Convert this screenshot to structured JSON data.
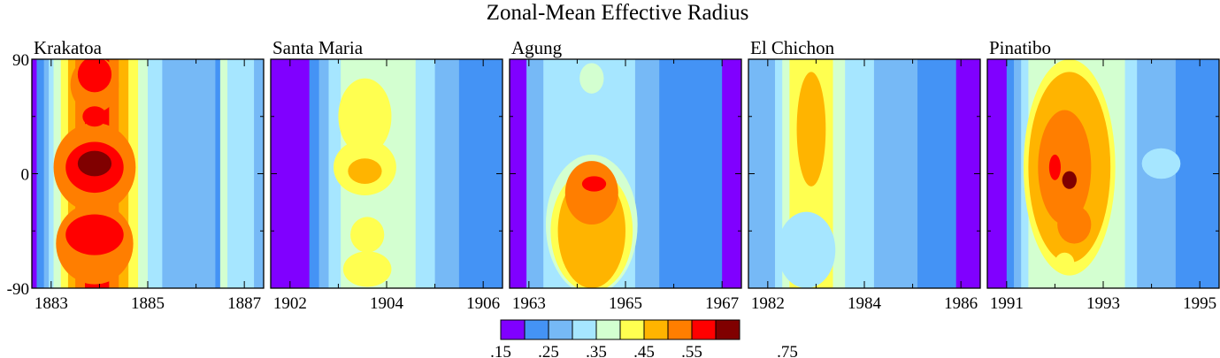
{
  "title": "Zonal-Mean Effective Radius",
  "chart_data": {
    "type": "heatmap",
    "title": "Zonal-Mean Effective Radius",
    "ylim": [
      -90,
      90
    ],
    "yticks": [
      "90",
      "0",
      "-90"
    ],
    "colorbar": {
      "levels": [
        0.15,
        0.2,
        0.25,
        0.3,
        0.35,
        0.4,
        0.45,
        0.5,
        0.55,
        0.6,
        0.65,
        0.7,
        0.75
      ],
      "labels": [
        ".15",
        ".25",
        ".35",
        ".45",
        ".55",
        ".75"
      ],
      "colors": [
        "#8000ff",
        "#4493f5",
        "#76b9f6",
        "#a6e6ff",
        "#d3ffd0",
        "#ffff50",
        "#ffb400",
        "#ff7e00",
        "#ff0000",
        "#800000"
      ]
    },
    "panels": [
      {
        "name": "Krakatoa",
        "xlim": [
          1882.6,
          1887.4
        ],
        "xticks": [
          "1883",
          "1885",
          "1887"
        ],
        "zones": [
          {
            "x": [
              1882.6,
              1882.7
            ],
            "c": 0
          },
          {
            "x": [
              1882.7,
              1882.85
            ],
            "c": 1
          },
          {
            "x": [
              1882.85,
              1882.95
            ],
            "c": 2
          },
          {
            "x": [
              1882.95,
              1883.05
            ],
            "c": 3
          },
          {
            "x": [
              1883.05,
              1883.2
            ],
            "c": 4
          },
          {
            "x": [
              1883.2,
              1883.35
            ],
            "c": 5
          },
          {
            "x": [
              1883.35,
              1883.5
            ],
            "c": 6
          },
          {
            "x": [
              1883.5,
              1883.7
            ],
            "c": 7
          },
          {
            "x": [
              1883.7,
              1884.2
            ],
            "c": 8
          },
          {
            "x": [
              1884.2,
              1884.4
            ],
            "c": 7
          },
          {
            "x": [
              1884.4,
              1884.6
            ],
            "c": 6
          },
          {
            "x": [
              1884.6,
              1884.8
            ],
            "c": 5
          },
          {
            "x": [
              1884.8,
              1885.0
            ],
            "c": 4
          },
          {
            "x": [
              1885.0,
              1885.3
            ],
            "c": 3
          },
          {
            "x": [
              1885.3,
              1886.4
            ],
            "c": 2
          },
          {
            "x": [
              1886.4,
              1886.5
            ],
            "c": 1
          },
          {
            "x": [
              1886.5,
              1886.65
            ],
            "c": 4
          },
          {
            "x": [
              1886.65,
              1887.2
            ],
            "c": 3
          },
          {
            "x": [
              1887.2,
              1887.4
            ],
            "c": 2
          }
        ],
        "blobs": [
          {
            "x": 1883.9,
            "y": 5,
            "rx": 0.85,
            "ry": 35,
            "c": 7
          },
          {
            "x": 1883.9,
            "y": 5,
            "rx": 0.6,
            "ry": 20,
            "c": 8
          },
          {
            "x": 1883.9,
            "y": 8,
            "rx": 0.35,
            "ry": 10,
            "c": 9
          },
          {
            "x": 1883.9,
            "y": -55,
            "rx": 0.8,
            "ry": 32,
            "c": 7
          },
          {
            "x": 1883.9,
            "y": -48,
            "rx": 0.6,
            "ry": 16,
            "c": 8
          },
          {
            "x": 1883.9,
            "y": 70,
            "rx": 0.5,
            "ry": 22,
            "c": 7
          },
          {
            "x": 1883.9,
            "y": 78,
            "rx": 0.35,
            "ry": 14,
            "c": 8
          },
          {
            "x": 1883.9,
            "y": 45,
            "rx": 0.25,
            "ry": 8,
            "c": 8
          }
        ]
      },
      {
        "name": "Santa Maria",
        "xlim": [
          1901.6,
          1906.4
        ],
        "xticks": [
          "1902",
          "1904",
          "1906"
        ],
        "zones": [
          {
            "x": [
              1901.6,
              1902.4
            ],
            "c": 0
          },
          {
            "x": [
              1902.4,
              1902.6
            ],
            "c": 1
          },
          {
            "x": [
              1902.6,
              1902.8
            ],
            "c": 2
          },
          {
            "x": [
              1902.8,
              1903.05
            ],
            "c": 3
          },
          {
            "x": [
              1903.05,
              1904.6
            ],
            "c": 4
          },
          {
            "x": [
              1904.6,
              1905.0
            ],
            "c": 3
          },
          {
            "x": [
              1905.0,
              1905.5
            ],
            "c": 2
          },
          {
            "x": [
              1905.5,
              1906.4
            ],
            "c": 1
          }
        ],
        "blobs": [
          {
            "x": 1903.55,
            "y": 45,
            "rx": 0.55,
            "ry": 30,
            "c": 5
          },
          {
            "x": 1903.55,
            "y": 5,
            "rx": 0.65,
            "ry": 22,
            "c": 5
          },
          {
            "x": 1903.55,
            "y": 2,
            "rx": 0.35,
            "ry": 10,
            "c": 6
          },
          {
            "x": 1903.6,
            "y": -48,
            "rx": 0.35,
            "ry": 14,
            "c": 5
          },
          {
            "x": 1903.6,
            "y": -75,
            "rx": 0.5,
            "ry": 14,
            "c": 5
          }
        ]
      },
      {
        "name": "Agung",
        "xlim": [
          1962.6,
          1967.4
        ],
        "xticks": [
          "1963",
          "1965",
          "1967"
        ],
        "zones": [
          {
            "x": [
              1962.6,
              1962.95
            ],
            "c": 0
          },
          {
            "x": [
              1962.95,
              1963.3
            ],
            "c": 2
          },
          {
            "x": [
              1963.3,
              1965.2
            ],
            "c": 3
          },
          {
            "x": [
              1965.2,
              1965.7
            ],
            "c": 2
          },
          {
            "x": [
              1965.7,
              1967.0
            ],
            "c": 1
          },
          {
            "x": [
              1967.0,
              1967.4
            ],
            "c": 0
          }
        ],
        "blobs": [
          {
            "x": 1964.3,
            "y": -40,
            "rx": 0.95,
            "ry": 55,
            "c": 4
          },
          {
            "x": 1964.3,
            "y": -45,
            "rx": 0.85,
            "ry": 48,
            "c": 5
          },
          {
            "x": 1964.3,
            "y": -45,
            "rx": 0.7,
            "ry": 45,
            "c": 6
          },
          {
            "x": 1964.3,
            "y": -15,
            "rx": 0.55,
            "ry": 25,
            "c": 7
          },
          {
            "x": 1964.35,
            "y": -8,
            "rx": 0.25,
            "ry": 6,
            "c": 8
          },
          {
            "x": 1964.3,
            "y": 75,
            "rx": 0.25,
            "ry": 12,
            "c": 4
          }
        ]
      },
      {
        "name": "El Chichon",
        "xlim": [
          1981.6,
          1986.4
        ],
        "xticks": [
          "1982",
          "1984",
          "1986"
        ],
        "zones": [
          {
            "x": [
              1981.6,
              1982.15
            ],
            "c": 2
          },
          {
            "x": [
              1982.15,
              1982.3
            ],
            "c": 3
          },
          {
            "x": [
              1982.3,
              1982.45
            ],
            "c": 4
          },
          {
            "x": [
              1982.45,
              1983.35
            ],
            "c": 5
          },
          {
            "x": [
              1983.35,
              1983.6
            ],
            "c": 4
          },
          {
            "x": [
              1983.6,
              1984.2
            ],
            "c": 3
          },
          {
            "x": [
              1984.2,
              1985.1
            ],
            "c": 2
          },
          {
            "x": [
              1985.1,
              1985.9
            ],
            "c": 1
          },
          {
            "x": [
              1985.9,
              1986.4
            ],
            "c": 0
          }
        ],
        "blobs": [
          {
            "x": 1982.9,
            "y": 35,
            "rx": 0.3,
            "ry": 45,
            "c": 6
          },
          {
            "x": 1982.8,
            "y": -60,
            "rx": 0.6,
            "ry": 30,
            "c": 3
          }
        ]
      },
      {
        "name": "Pinatibo",
        "xlim": [
          1990.6,
          1995.4
        ],
        "xticks": [
          "1991",
          "1993",
          "1995"
        ],
        "zones": [
          {
            "x": [
              1990.6,
              1991.0
            ],
            "c": 0
          },
          {
            "x": [
              1991.0,
              1991.15
            ],
            "c": 1
          },
          {
            "x": [
              1991.15,
              1991.3
            ],
            "c": 2
          },
          {
            "x": [
              1991.3,
              1991.45
            ],
            "c": 3
          },
          {
            "x": [
              1991.45,
              1993.45
            ],
            "c": 4
          },
          {
            "x": [
              1993.45,
              1993.7
            ],
            "c": 3
          },
          {
            "x": [
              1993.7,
              1994.5
            ],
            "c": 2
          },
          {
            "x": [
              1994.5,
              1995.4
            ],
            "c": 1
          }
        ],
        "blobs": [
          {
            "x": 1992.3,
            "y": 5,
            "rx": 0.95,
            "ry": 85,
            "c": 5
          },
          {
            "x": 1992.3,
            "y": 5,
            "rx": 0.85,
            "ry": 75,
            "c": 6
          },
          {
            "x": 1992.2,
            "y": 5,
            "rx": 0.55,
            "ry": 45,
            "c": 7
          },
          {
            "x": 1992.3,
            "y": -5,
            "rx": 0.15,
            "ry": 7,
            "c": 9
          },
          {
            "x": 1992.0,
            "y": 5,
            "rx": 0.12,
            "ry": 10,
            "c": 8
          },
          {
            "x": 1992.4,
            "y": -40,
            "rx": 0.35,
            "ry": 15,
            "c": 7
          },
          {
            "x": 1992.2,
            "y": -70,
            "rx": 0.2,
            "ry": 8,
            "c": 5
          },
          {
            "x": 1994.2,
            "y": 8,
            "rx": 0.4,
            "ry": 12,
            "c": 3
          }
        ]
      }
    ]
  }
}
